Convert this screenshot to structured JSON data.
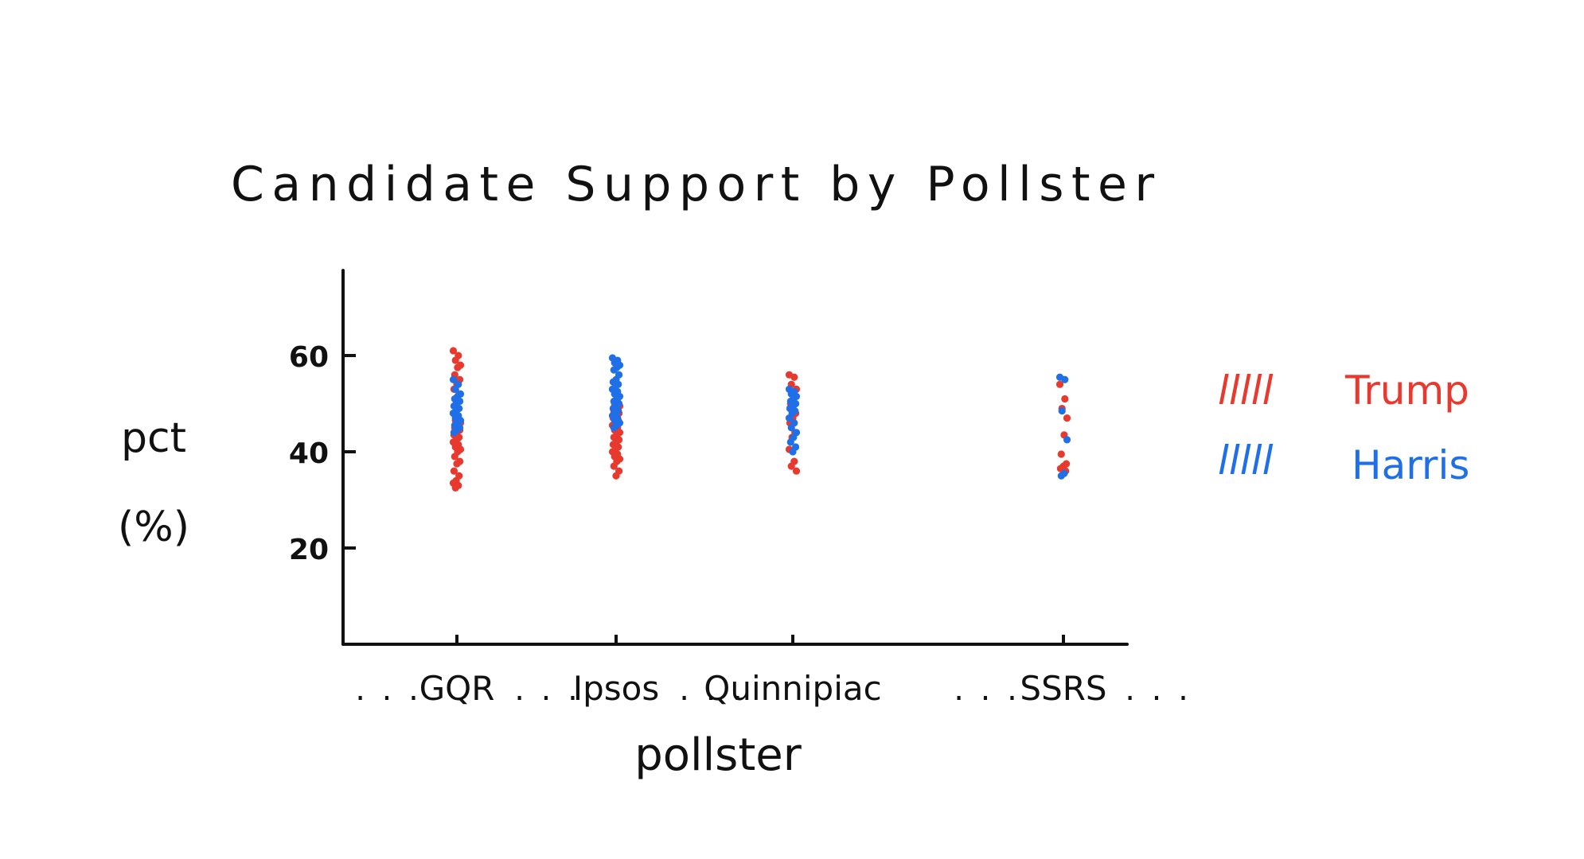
{
  "chart_data": {
    "type": "scatter",
    "title": "Candidate Support by Pollster",
    "xlabel": "pollster",
    "ylabel_line1": "pct",
    "ylabel_line2": "(%)",
    "categories": [
      "GQR",
      "Ipsos",
      "Quinnipiac",
      "SSRS"
    ],
    "x_dots": ". . .",
    "y_ticks": [
      20,
      40,
      60
    ],
    "ylim": [
      0,
      74
    ],
    "grid": false,
    "legend_position": "right",
    "legend_swatch": "lllll",
    "series": [
      {
        "name": "Trump",
        "color": "#E8392E",
        "points": {
          "GQR": [
            61,
            60,
            59,
            58,
            57.5,
            56,
            55,
            54,
            53,
            52,
            50,
            48,
            47,
            46.5,
            46,
            45.5,
            45,
            44.5,
            44,
            43.5,
            43,
            42.5,
            42,
            41.5,
            41,
            40.5,
            40,
            39,
            38,
            37.5,
            36,
            35,
            34,
            33.5,
            33,
            32.5
          ],
          "Ipsos": [
            53,
            51,
            50,
            49.5,
            49,
            48.5,
            48,
            47.5,
            47,
            46.5,
            46,
            45.5,
            45,
            44.5,
            44,
            43.5,
            43,
            42.5,
            42,
            41.5,
            41,
            40.5,
            40,
            39.5,
            39,
            38.5,
            38,
            37,
            36,
            35
          ],
          "Quinnipiac": [
            56,
            55.5,
            54,
            53,
            51,
            50,
            48,
            47,
            46,
            44,
            43,
            40.5,
            38,
            37,
            36
          ],
          "SSRS": [
            54,
            51,
            49,
            47,
            43.5,
            39.5,
            37.5,
            37,
            36.5,
            36
          ]
        }
      },
      {
        "name": "Harris",
        "color": "#1F6FE8",
        "points": {
          "GQR": [
            55,
            54,
            53,
            52,
            51.5,
            51,
            50.5,
            50,
            49.5,
            49,
            48.5,
            48,
            47.5,
            47,
            46.5,
            46,
            45.5,
            45,
            44.5,
            44
          ],
          "Ipsos": [
            59.5,
            59,
            58.5,
            58,
            57.5,
            57,
            56,
            55,
            54.5,
            54,
            53.5,
            53,
            52.5,
            52,
            51.5,
            51,
            50.5,
            50,
            49.5,
            49,
            48.5,
            48,
            47.5,
            47,
            46.5,
            46,
            45.5,
            45
          ],
          "Quinnipiac": [
            53,
            52.5,
            52,
            51.5,
            51,
            50.5,
            50,
            49.5,
            49,
            48.5,
            48,
            47,
            46,
            45,
            44,
            43,
            42,
            41,
            40
          ],
          "SSRS": [
            55.5,
            55,
            48.5,
            42.5,
            35.5,
            35
          ]
        }
      }
    ]
  }
}
